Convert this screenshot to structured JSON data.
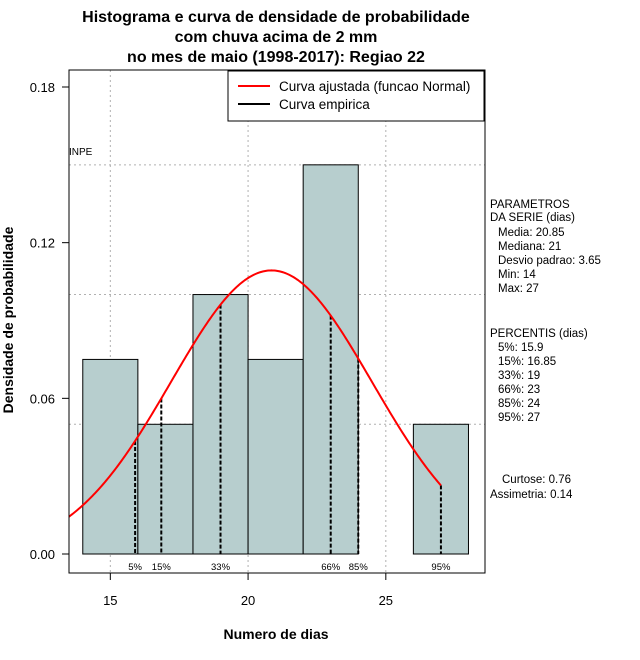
{
  "chart_data": {
    "type": "bar",
    "title_lines": [
      "Histograma e curva de densidade de probabilidade",
      "com chuva acima de 2 mm",
      "no mes de maio (1998-2017): Regiao 22"
    ],
    "xlabel": "Numero de dias",
    "ylabel": "Densidade de probabilidade",
    "xlim": [
      13.5,
      28.6
    ],
    "ylim": [
      0,
      0.18
    ],
    "x_ticks": [
      15,
      20,
      25
    ],
    "y_ticks": [
      0.0,
      0.06,
      0.12,
      0.18
    ],
    "y_tick_labels": [
      "0.00",
      "0.06",
      "0.12",
      "0.18"
    ],
    "grid_x": [
      15,
      20,
      25
    ],
    "grid_y": [
      0.05,
      0.1,
      0.15
    ],
    "bins": [
      {
        "from": 14,
        "to": 16,
        "density": 0.075
      },
      {
        "from": 16,
        "to": 18,
        "density": 0.05
      },
      {
        "from": 18,
        "to": 20,
        "density": 0.1
      },
      {
        "from": 20,
        "to": 22,
        "density": 0.075
      },
      {
        "from": 22,
        "to": 24,
        "density": 0.15
      },
      {
        "from": 24,
        "to": 26,
        "density": 0
      },
      {
        "from": 26,
        "to": 28,
        "density": 0.05
      }
    ],
    "series": [
      {
        "name": "Curva ajustada (funcao Normal)",
        "color": "#ff0000",
        "mean": 20.85,
        "sd": 3.65,
        "x_from": 13.5,
        "x_to": 27
      }
    ],
    "legend": [
      {
        "label": "Curva ajustada (funcao Normal)",
        "color": "#ff0000"
      },
      {
        "label": "Curva empirica",
        "color": "#000000"
      }
    ],
    "legend_position": "top-right",
    "watermark": "INPE",
    "percentiles": [
      {
        "label": "5%",
        "value": 15.9
      },
      {
        "label": "15%",
        "value": 16.85
      },
      {
        "label": "33%",
        "value": 19
      },
      {
        "label": "66%",
        "value": 23
      },
      {
        "label": "85%",
        "value": 24
      },
      {
        "label": "95%",
        "value": 27
      }
    ],
    "bar_color": "#b7cece",
    "grid_color": "#b0b0b0"
  },
  "side_panel": {
    "params_title_1": "PARAMETROS",
    "params_title_2": "DA SERIE (dias)",
    "media": "Media: 20.85",
    "mediana": "Mediana: 21",
    "desvio": "Desvio padrao: 3.65",
    "min": "Min: 14",
    "max": "Max: 27",
    "pct_title": "PERCENTIS (dias)",
    "p5": "5%: 15.9",
    "p15": "15%: 16.85",
    "p33": "33%: 19",
    "p66": "66%: 23",
    "p85": "85%: 24",
    "p95": "95%: 27",
    "curtose": "Curtose: 0.76",
    "assimetria": "Assimetria: 0.14"
  }
}
